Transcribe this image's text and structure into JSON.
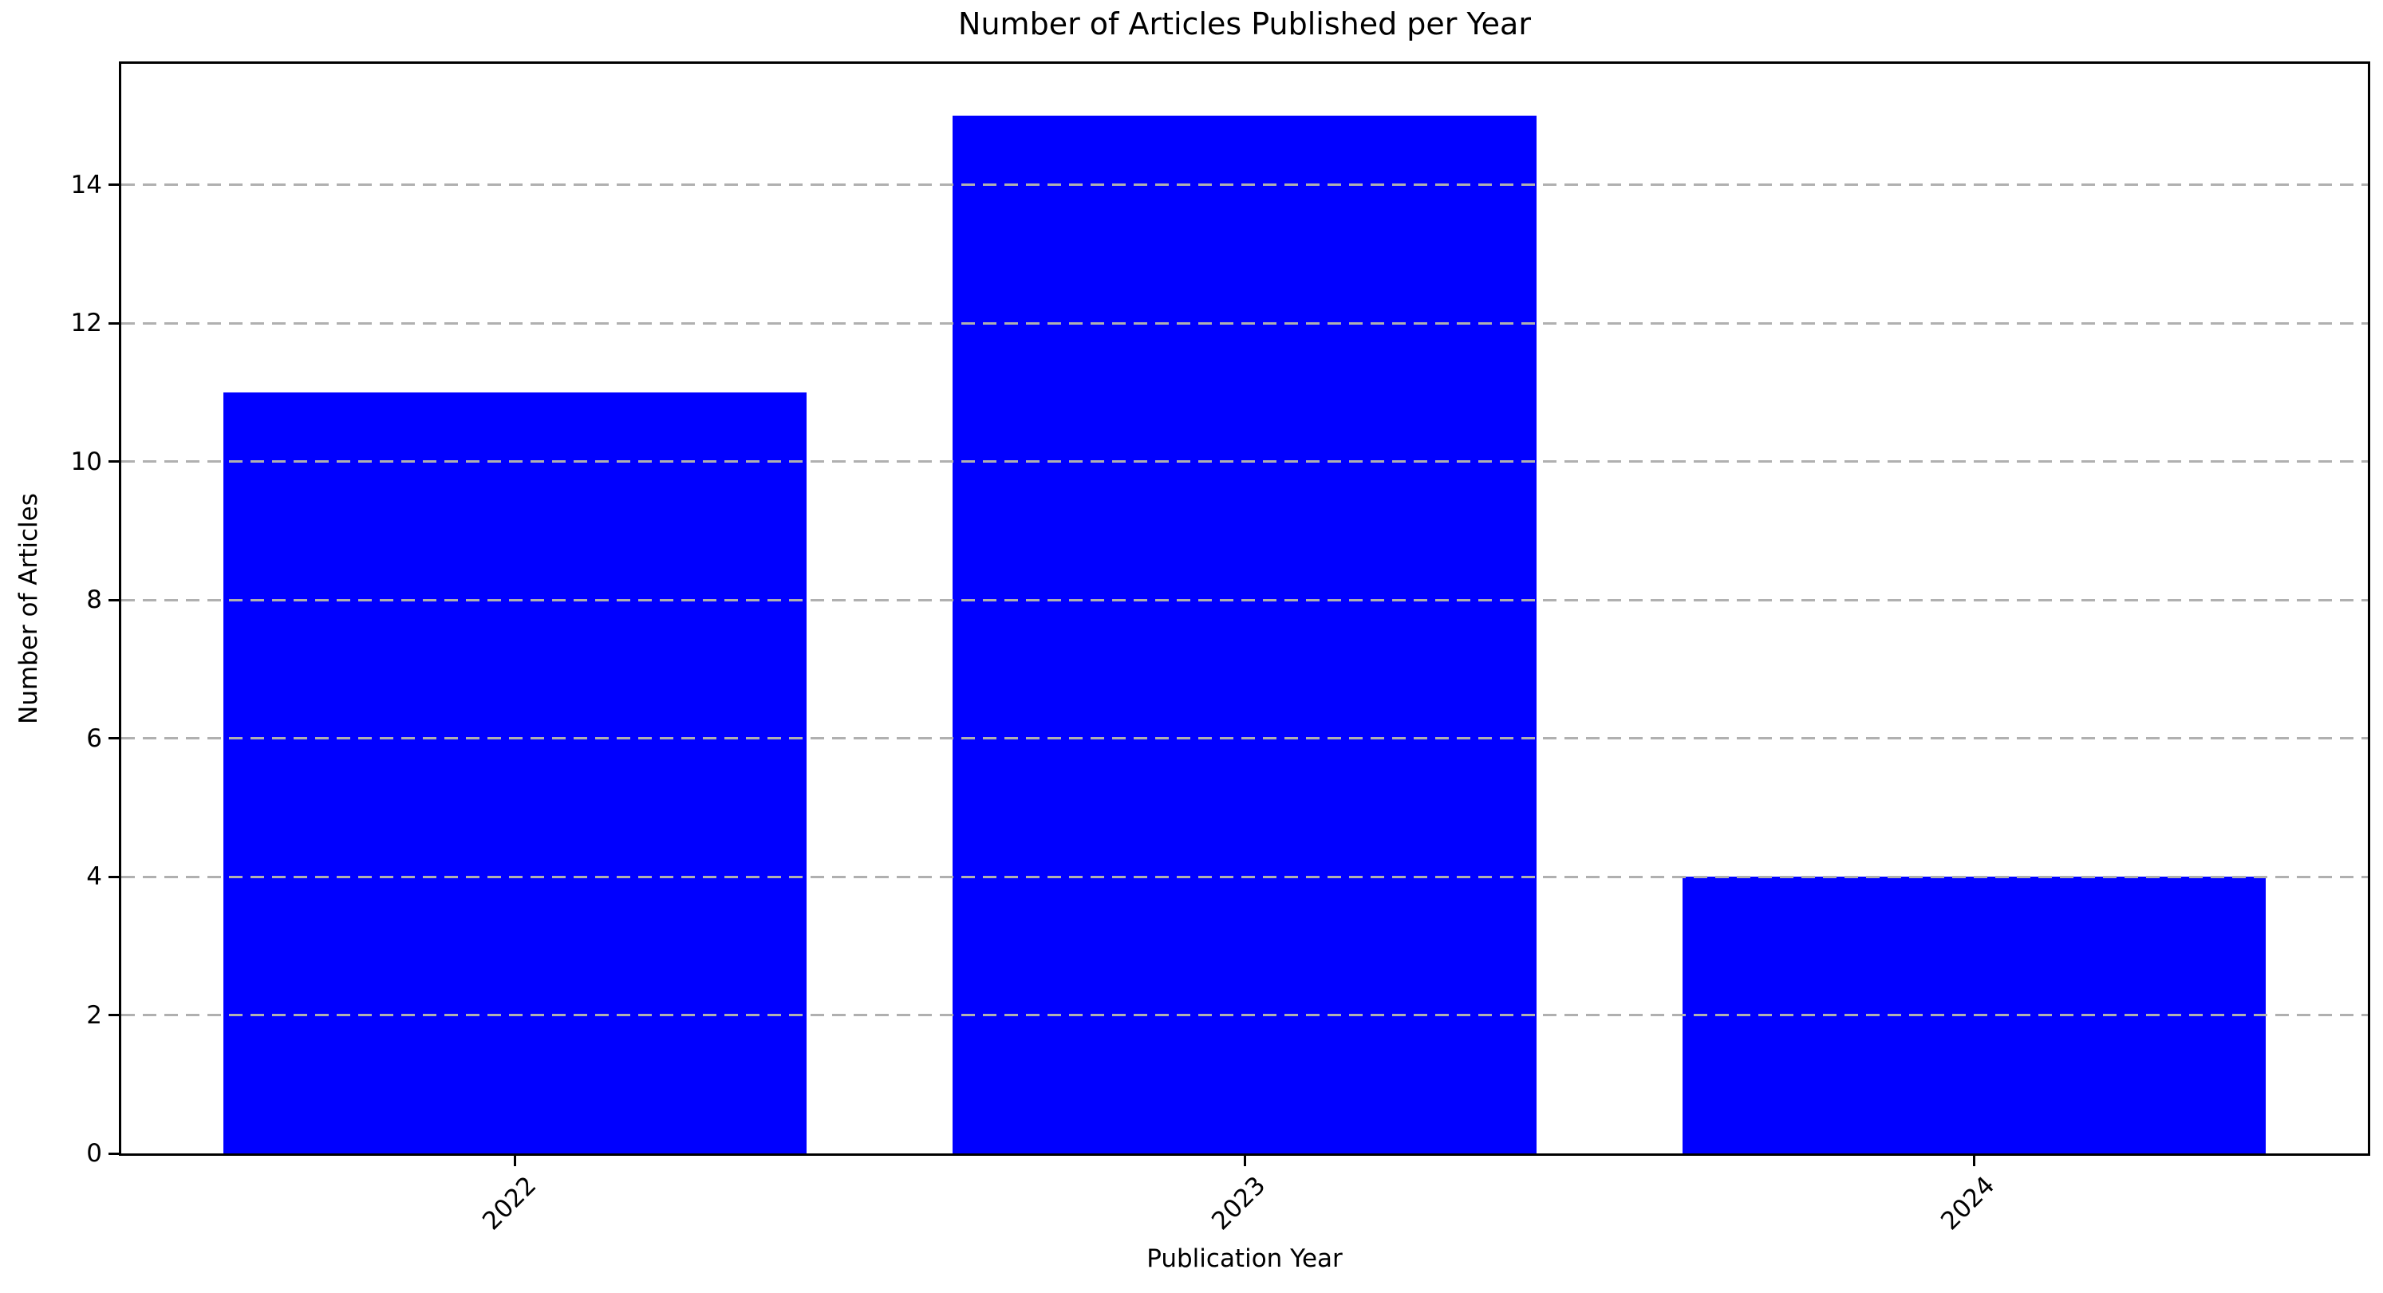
{
  "chart_data": {
    "type": "bar",
    "title": "Number of Articles Published per Year",
    "xlabel": "Publication Year",
    "ylabel": "Number of Articles",
    "categories": [
      "2022",
      "2023",
      "2024"
    ],
    "values": [
      11,
      15,
      4
    ],
    "yticks": [
      0,
      2,
      4,
      6,
      8,
      10,
      12,
      14
    ],
    "ylim": [
      0,
      15.75
    ],
    "bar_color": "#0000ff",
    "grid": "horizontal-dashed",
    "grid_color": "#b0b0b0",
    "grid_above_bars": true,
    "spine_color": "#000000",
    "legend": "none",
    "xtick_rotation_deg": 45
  }
}
